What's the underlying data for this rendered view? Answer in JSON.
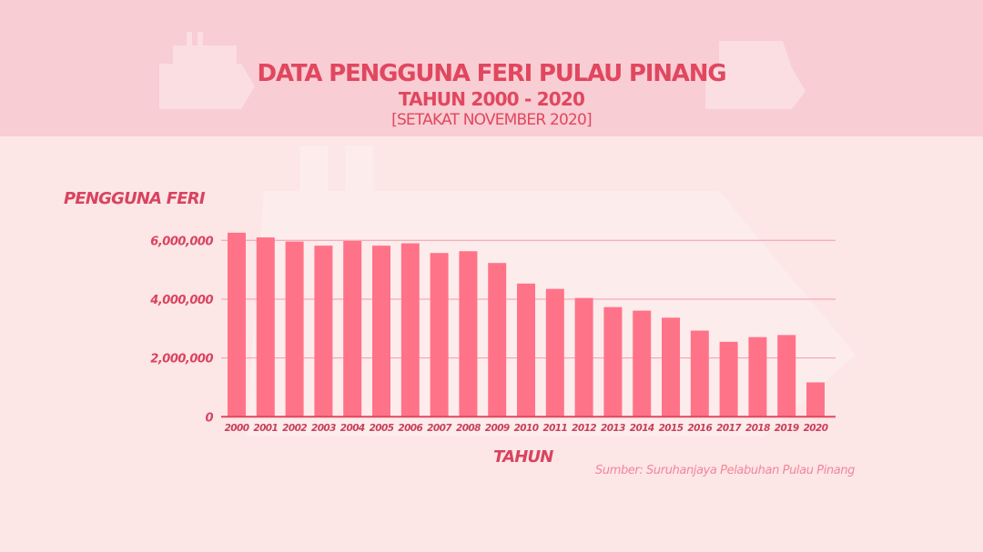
{
  "header": {
    "title": "DATA PENGGUNA FERI PULAU PINANG",
    "subtitle": "TAHUN 2000 - 2020",
    "note": "[SETAKAT NOVEMBER 2020]"
  },
  "source": "Sumber: Suruhanjaya Pelabuhan Pulau Pinang",
  "colors": {
    "header_bg": "#f8cdd3",
    "background": "#fde6e6",
    "bar": "#ff7388",
    "text": "#e1475f"
  },
  "chart_data": {
    "type": "bar",
    "title": "DATA PENGGUNA FERI PULAU PINANG",
    "xlabel": "TAHUN",
    "ylabel": "PENGGUNA FERI",
    "ylim": [
      0,
      6000000
    ],
    "yticks": [
      0,
      2000000,
      4000000,
      6000000
    ],
    "ytick_labels": [
      "0",
      "2,000,000",
      "4,000,000",
      "6,000,000"
    ],
    "grid": true,
    "categories": [
      "2000",
      "2001",
      "2002",
      "2003",
      "2004",
      "2005",
      "2006",
      "2007",
      "2008",
      "2009",
      "2010",
      "2011",
      "2012",
      "2013",
      "2014",
      "2015",
      "2016",
      "2017",
      "2018",
      "2019",
      "2020"
    ],
    "values": [
      6260000,
      6100000,
      5960000,
      5820000,
      5980000,
      5820000,
      5900000,
      5570000,
      5630000,
      5230000,
      4530000,
      4350000,
      4040000,
      3730000,
      3610000,
      3370000,
      2930000,
      2550000,
      2710000,
      2780000,
      1170000
    ]
  }
}
